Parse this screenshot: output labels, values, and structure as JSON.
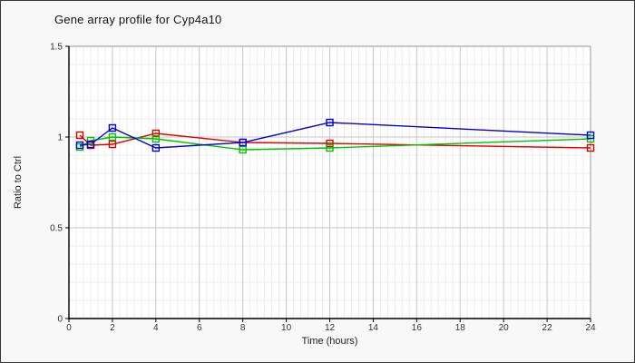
{
  "chart_data": {
    "type": "line",
    "title": "Gene array profile for Cyp4a10",
    "xlabel": "Time (hours)",
    "ylabel": "Ratio to Ctrl",
    "xlim": [
      0,
      24
    ],
    "ylim": [
      0,
      1.5
    ],
    "x_ticks": [
      0,
      2,
      4,
      6,
      8,
      10,
      12,
      14,
      16,
      18,
      20,
      22,
      24
    ],
    "y_ticks": [
      0,
      0.5,
      1,
      1.5
    ],
    "y_tick_labels": [
      "0",
      "0.5",
      "1",
      "1.5"
    ],
    "grid": "major-and-minor",
    "legend": "none",
    "marker": "open-square",
    "x": [
      0.5,
      1,
      2,
      4,
      8,
      12,
      24
    ],
    "series": [
      {
        "name": "red",
        "color": "#e00000",
        "values": [
          1.01,
          0.955,
          0.96,
          1.02,
          0.97,
          0.965,
          0.94
        ]
      },
      {
        "name": "green",
        "color": "#00c300",
        "values": [
          0.945,
          0.98,
          1.0,
          0.99,
          0.93,
          0.94,
          0.99
        ]
      },
      {
        "name": "blue",
        "color": "#0000d8",
        "values": [
          0.955,
          0.96,
          1.05,
          0.94,
          0.97,
          1.08,
          1.01
        ]
      }
    ],
    "colors": {
      "plot_background": "#ffffff",
      "outer_background": "#f8f8f8",
      "minor_grid": "#ededed",
      "major_grid": "#c6c6c6",
      "frame": "#b5b5b5",
      "axis": "#000000",
      "tick_text": "#333333"
    }
  }
}
